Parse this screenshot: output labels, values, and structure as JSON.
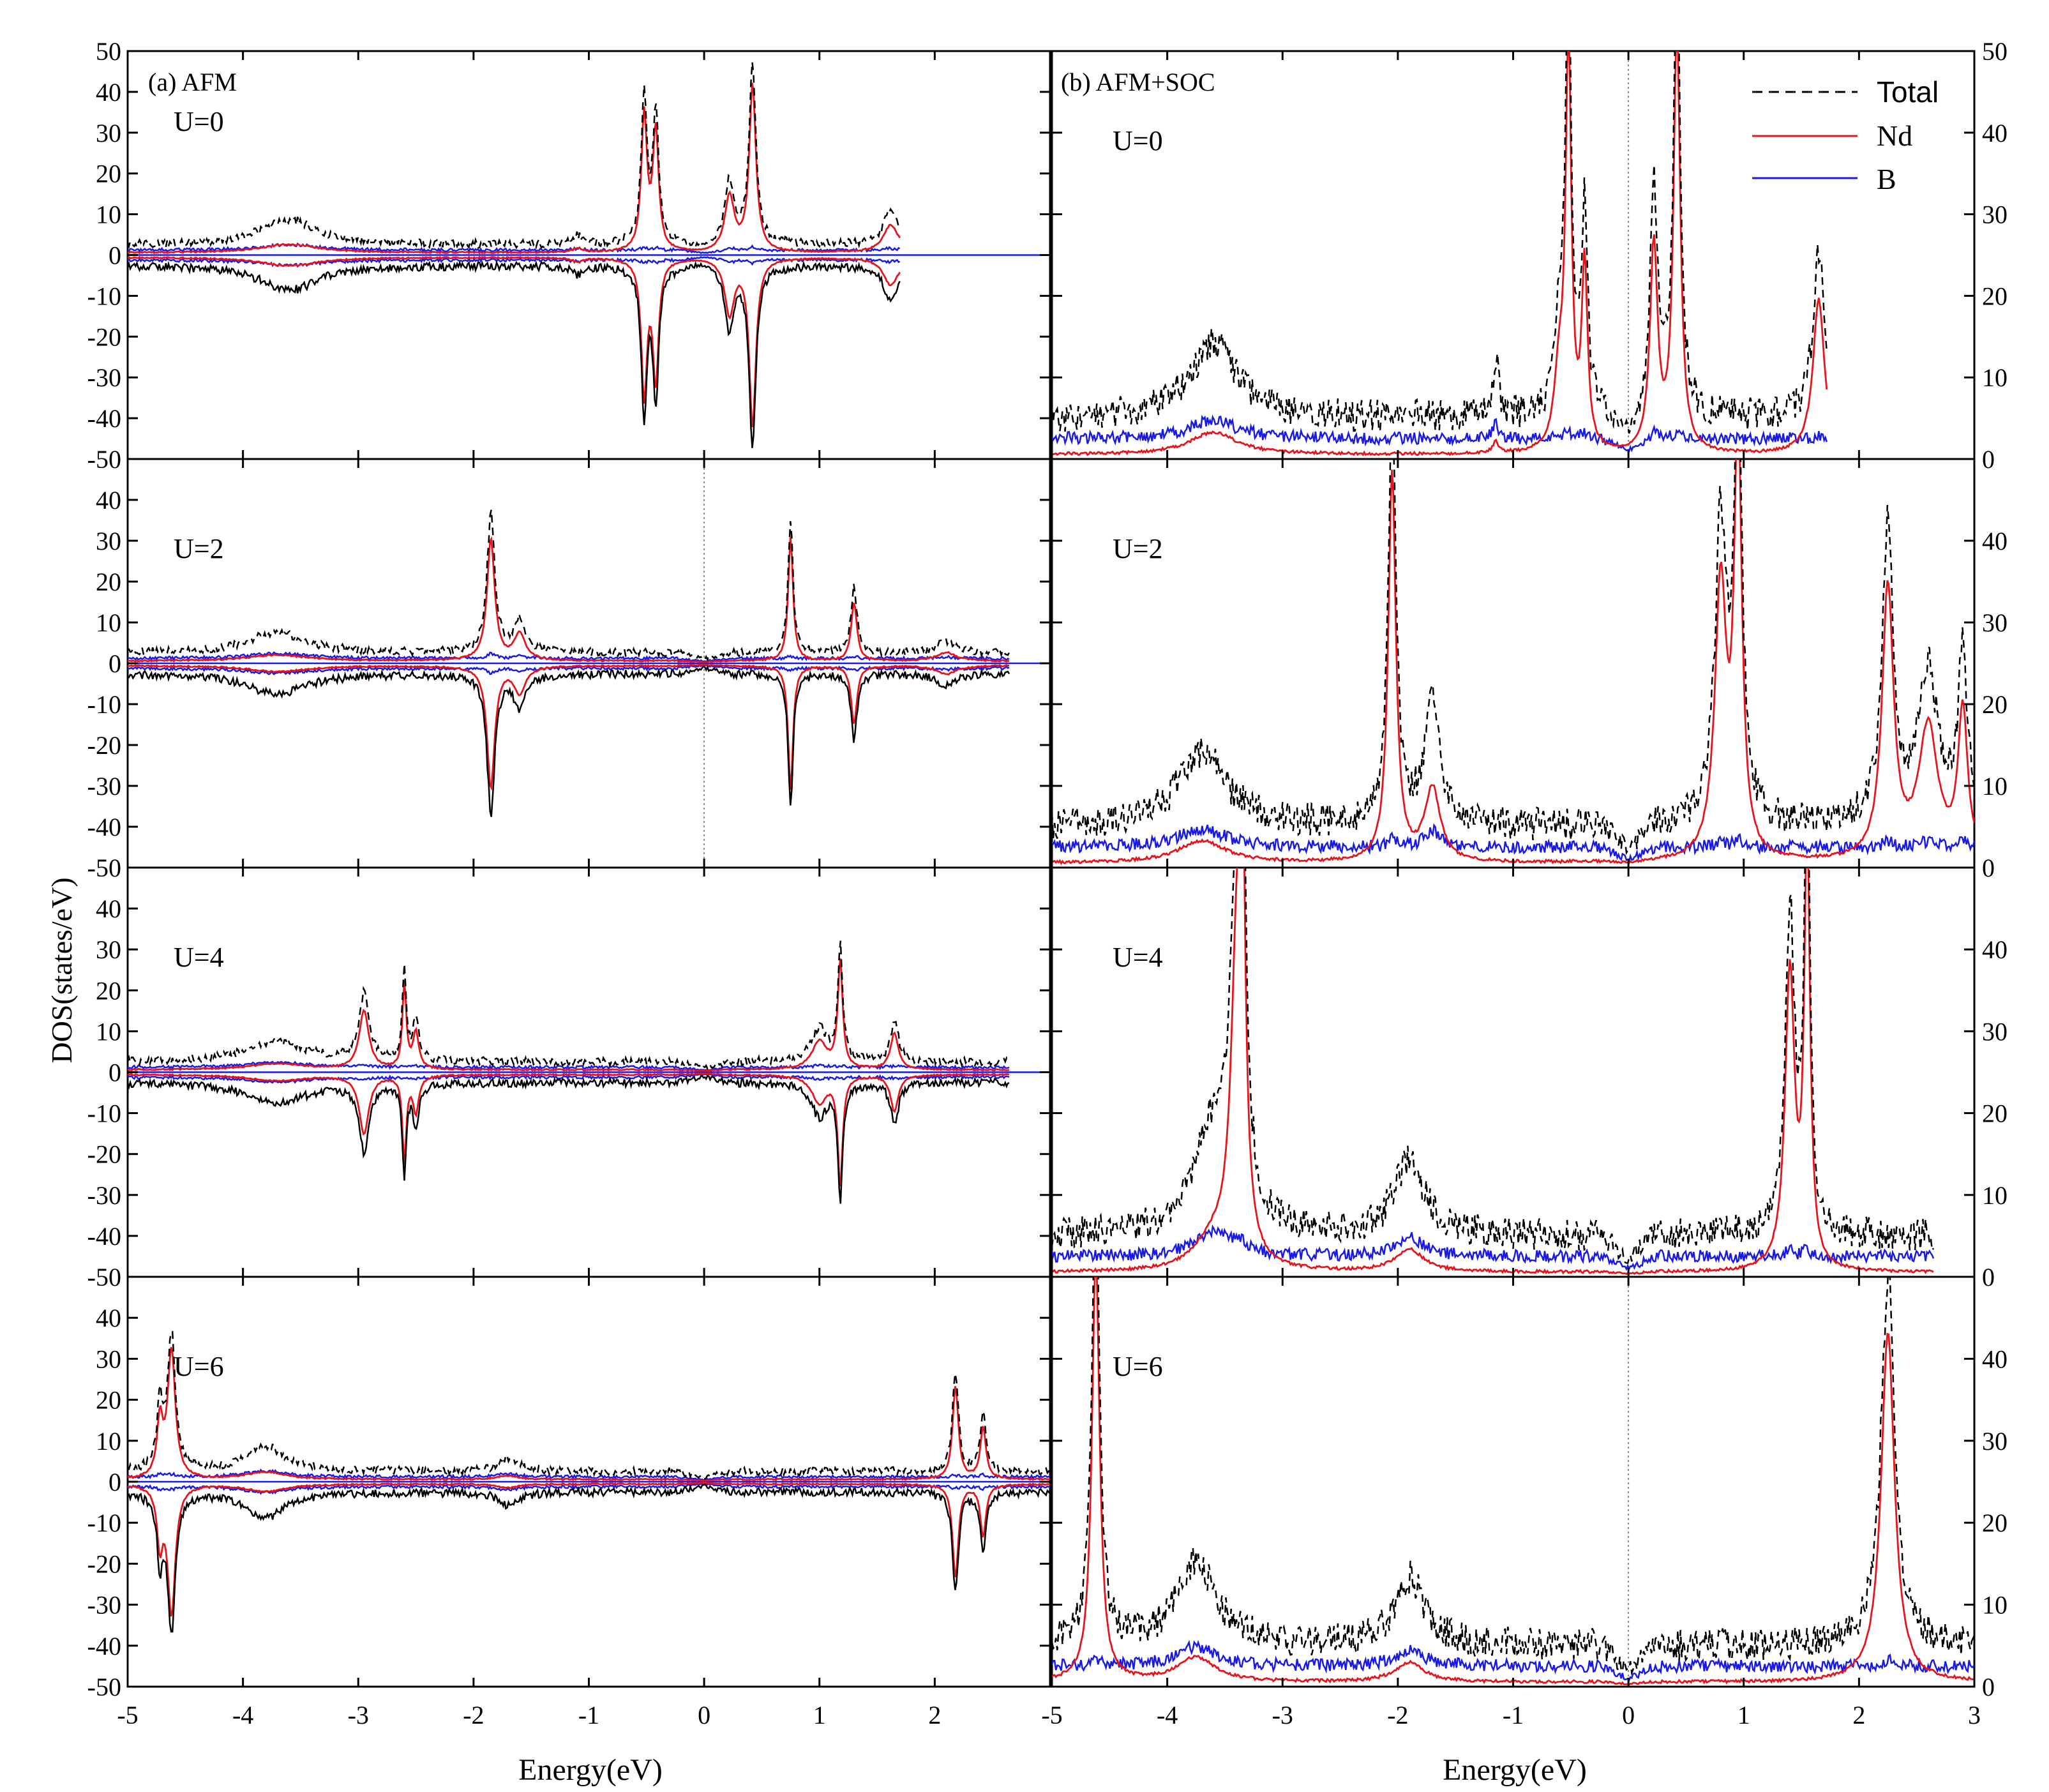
{
  "figure": {
    "xlabel": "Energy(eV)",
    "ylabel": "DOS(states/eV)",
    "colors": {
      "total": "#000000",
      "nd": "#e8141c",
      "b": "#1a1ae8",
      "fermi": "#888888"
    },
    "legend": {
      "position": "top-right",
      "entries": [
        {
          "name": "Total",
          "style": "dashed",
          "color": "#000000"
        },
        {
          "name": "Nd",
          "style": "solid",
          "color": "#e8141c"
        },
        {
          "name": "B",
          "style": "solid",
          "color": "#1a1ae8"
        }
      ]
    }
  },
  "panels": {
    "left": {
      "title": "(a) AFM"
    },
    "right": {
      "title": "(b) AFM+SOC"
    }
  },
  "chart_data": [
    {
      "type": "line",
      "panel": "(a) AFM",
      "label": "U=0",
      "title": "(a) AFM",
      "xlabel": "Energy(eV)",
      "ylabel": "DOS(states/eV)",
      "xlim": [
        -5,
        3
      ],
      "ylim": [
        -50,
        50
      ],
      "xticks": [
        -5,
        -4,
        -3,
        -2,
        -1,
        0,
        1,
        2
      ],
      "yticks": [
        -50,
        -40,
        -30,
        -20,
        -10,
        0,
        10,
        20,
        30,
        40,
        50
      ],
      "fermi_line": false,
      "edge": 1.7,
      "base": {
        "total": 2.5,
        "nd": 0.6,
        "b": 1.2
      },
      "peaks": [
        {
          "x": -3.6,
          "h": 6,
          "w": 0.3,
          "s": 0.35
        },
        {
          "x": -1.1,
          "h": 2,
          "w": 0.05,
          "s": 0.5
        },
        {
          "x": -0.52,
          "h": 35,
          "w": 0.03,
          "s": 0.95
        },
        {
          "x": -0.42,
          "h": 31,
          "w": 0.03,
          "s": 0.95
        },
        {
          "x": 0.22,
          "h": 15,
          "w": 0.05,
          "s": 0.9
        },
        {
          "x": 0.42,
          "h": 43,
          "w": 0.035,
          "s": 0.95
        },
        {
          "x": 1.62,
          "h": 8,
          "w": 0.08,
          "s": 0.85
        }
      ]
    },
    {
      "type": "line",
      "panel": "(a) AFM",
      "label": "U=2",
      "xlim": [
        -5,
        3
      ],
      "ylim": [
        -50,
        50
      ],
      "xticks": [
        -5,
        -4,
        -3,
        -2,
        -1,
        0,
        1,
        2
      ],
      "yticks": [
        -50,
        -40,
        -30,
        -20,
        -10,
        0,
        10,
        20,
        30,
        40
      ],
      "fermi_line": true,
      "edge": 2.65,
      "base": {
        "total": 2.5,
        "nd": 0.6,
        "b": 1.2
      },
      "peaks": [
        {
          "x": -3.7,
          "h": 5,
          "w": 0.3,
          "s": 0.3
        },
        {
          "x": -1.85,
          "h": 33,
          "w": 0.04,
          "s": 0.9
        },
        {
          "x": -1.6,
          "h": 8,
          "w": 0.06,
          "s": 0.8
        },
        {
          "x": 0.75,
          "h": 32,
          "w": 0.025,
          "s": 0.95
        },
        {
          "x": 1.3,
          "h": 16,
          "w": 0.03,
          "s": 0.9
        },
        {
          "x": 2.1,
          "h": 3,
          "w": 0.1,
          "s": 0.7
        }
      ]
    },
    {
      "type": "line",
      "panel": "(a) AFM",
      "label": "U=4",
      "xlim": [
        -5,
        3
      ],
      "ylim": [
        -50,
        50
      ],
      "xticks": [
        -5,
        -4,
        -3,
        -2,
        -1,
        0,
        1,
        2
      ],
      "yticks": [
        -50,
        -40,
        -30,
        -20,
        -10,
        0,
        10,
        20,
        30,
        40
      ],
      "fermi_line": false,
      "edge": 2.65,
      "base": {
        "total": 2.5,
        "nd": 0.6,
        "b": 1.2
      },
      "peaks": [
        {
          "x": -3.7,
          "h": 5,
          "w": 0.3,
          "s": 0.3
        },
        {
          "x": -2.95,
          "h": 16,
          "w": 0.05,
          "s": 0.9
        },
        {
          "x": -2.6,
          "h": 22,
          "w": 0.02,
          "s": 0.95
        },
        {
          "x": -2.5,
          "h": 10,
          "w": 0.03,
          "s": 0.9
        },
        {
          "x": 1.0,
          "h": 8,
          "w": 0.08,
          "s": 0.85
        },
        {
          "x": 1.18,
          "h": 28,
          "w": 0.025,
          "s": 0.95
        },
        {
          "x": 1.65,
          "h": 10,
          "w": 0.04,
          "s": 0.9
        }
      ]
    },
    {
      "type": "line",
      "panel": "(a) AFM",
      "label": "U=6",
      "xlim": [
        -5,
        3
      ],
      "ylim": [
        -50,
        50
      ],
      "xticks": [
        -5,
        -4,
        -3,
        -2,
        -1,
        0,
        1,
        2
      ],
      "yticks": [
        -50,
        -40,
        -30,
        -20,
        -10,
        0,
        10,
        20,
        30,
        40
      ],
      "xticklabels_shown": true,
      "fermi_line": false,
      "edge": 3.0,
      "base": {
        "total": 2.5,
        "nd": 0.6,
        "b": 1.2
      },
      "peaks": [
        {
          "x": -4.62,
          "h": 33,
          "w": 0.04,
          "s": 0.95
        },
        {
          "x": -4.72,
          "h": 15,
          "w": 0.03,
          "s": 0.9
        },
        {
          "x": -3.8,
          "h": 6,
          "w": 0.2,
          "s": 0.3
        },
        {
          "x": -1.7,
          "h": 3,
          "w": 0.1,
          "s": 0.3
        },
        {
          "x": 2.18,
          "h": 24,
          "w": 0.03,
          "s": 0.95
        },
        {
          "x": 2.42,
          "h": 14,
          "w": 0.03,
          "s": 0.9
        }
      ]
    },
    {
      "type": "line",
      "panel": "(b) AFM+SOC",
      "label": "U=0",
      "title": "(b) AFM+SOC",
      "xlabel": "Energy(eV)",
      "xlim": [
        -5,
        3
      ],
      "ylim": [
        0,
        50
      ],
      "xticks": [
        -5,
        -4,
        -3,
        -2,
        -1,
        0,
        1,
        2,
        3
      ],
      "yticks": [
        0,
        10,
        20,
        30,
        40,
        50
      ],
      "fermi_line": true,
      "edge": 1.72,
      "legend": true,
      "base": {
        "total": 5,
        "nd": 0.6,
        "b": 2.5
      },
      "peaks": [
        {
          "x": -3.6,
          "h": 9,
          "w": 0.25,
          "s": 0.3
        },
        {
          "x": -1.15,
          "h": 7,
          "w": 0.03,
          "s": 0.2
        },
        {
          "x": -0.6,
          "h": 10,
          "w": 0.05,
          "s": 0.9
        },
        {
          "x": -0.52,
          "h": 52,
          "w": 0.03,
          "s": 0.95
        },
        {
          "x": -0.38,
          "h": 25,
          "w": 0.03,
          "s": 0.9
        },
        {
          "x": 0.22,
          "h": 28,
          "w": 0.04,
          "s": 0.9
        },
        {
          "x": 0.42,
          "h": 55,
          "w": 0.035,
          "s": 0.95
        },
        {
          "x": 1.65,
          "h": 20,
          "w": 0.06,
          "s": 0.95
        }
      ]
    },
    {
      "type": "line",
      "panel": "(b) AFM+SOC",
      "label": "U=2",
      "xlim": [
        -5,
        3
      ],
      "ylim": [
        0,
        50
      ],
      "xticks": [
        -5,
        -4,
        -3,
        -2,
        -1,
        0,
        1,
        2,
        3
      ],
      "yticks": [
        0,
        10,
        20,
        30,
        40
      ],
      "fermi_line": false,
      "edge": 3.0,
      "base": {
        "total": 5,
        "nd": 0.6,
        "b": 2.5
      },
      "peaks": [
        {
          "x": -3.7,
          "h": 9,
          "w": 0.25,
          "s": 0.3
        },
        {
          "x": -2.05,
          "h": 50,
          "w": 0.04,
          "s": 0.95
        },
        {
          "x": -1.7,
          "h": 15,
          "w": 0.08,
          "s": 0.6
        },
        {
          "x": 0.8,
          "h": 35,
          "w": 0.06,
          "s": 0.95
        },
        {
          "x": 0.95,
          "h": 55,
          "w": 0.04,
          "s": 0.95
        },
        {
          "x": 2.25,
          "h": 35,
          "w": 0.06,
          "s": 0.95
        },
        {
          "x": 2.6,
          "h": 18,
          "w": 0.1,
          "s": 0.9
        },
        {
          "x": 2.9,
          "h": 20,
          "w": 0.05,
          "s": 0.9
        }
      ]
    },
    {
      "type": "line",
      "panel": "(b) AFM+SOC",
      "label": "U=4",
      "xlim": [
        -5,
        3
      ],
      "ylim": [
        0,
        50
      ],
      "xticks": [
        -5,
        -4,
        -3,
        -2,
        -1,
        0,
        1,
        2,
        3
      ],
      "yticks": [
        0,
        10,
        20,
        30,
        40
      ],
      "fermi_line": false,
      "edge": 2.65,
      "base": {
        "total": 5,
        "nd": 0.6,
        "b": 2.5
      },
      "peaks": [
        {
          "x": -3.6,
          "h": 12,
          "w": 0.2,
          "s": 0.3
        },
        {
          "x": -3.4,
          "h": 35,
          "w": 0.06,
          "s": 0.95
        },
        {
          "x": -3.35,
          "h": 50,
          "w": 0.03,
          "s": 0.95
        },
        {
          "x": -1.9,
          "h": 9,
          "w": 0.15,
          "s": 0.3
        },
        {
          "x": 1.4,
          "h": 38,
          "w": 0.05,
          "s": 0.95
        },
        {
          "x": 1.55,
          "h": 55,
          "w": 0.03,
          "s": 0.95
        }
      ]
    },
    {
      "type": "line",
      "panel": "(b) AFM+SOC",
      "label": "U=6",
      "xlim": [
        -5,
        3
      ],
      "ylim": [
        0,
        50
      ],
      "xticks": [
        -5,
        -4,
        -3,
        -2,
        -1,
        0,
        1,
        2,
        3
      ],
      "yticks": [
        0,
        10,
        20,
        30,
        40
      ],
      "xticklabels_shown": true,
      "fermi_line": true,
      "edge": 3.0,
      "base": {
        "total": 5,
        "nd": 0.6,
        "b": 2.5
      },
      "peaks": [
        {
          "x": -4.62,
          "h": 55,
          "w": 0.04,
          "s": 0.95
        },
        {
          "x": -3.75,
          "h": 10,
          "w": 0.2,
          "s": 0.3
        },
        {
          "x": -1.9,
          "h": 8,
          "w": 0.15,
          "s": 0.3
        },
        {
          "x": 2.25,
          "h": 45,
          "w": 0.07,
          "s": 0.95
        }
      ]
    }
  ]
}
